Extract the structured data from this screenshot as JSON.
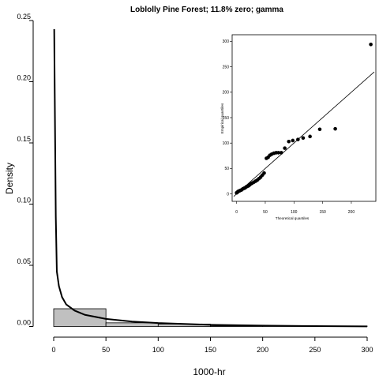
{
  "chart_data": [
    {
      "type": "histogram",
      "title": "Loblolly Pine Forest; 11.8% zero; gamma",
      "xlabel": "1000-hr",
      "ylabel": "Density",
      "xlim": [
        0,
        300
      ],
      "ylim": [
        0,
        0.25
      ],
      "x_ticks": [
        0,
        50,
        100,
        150,
        200,
        250,
        300
      ],
      "x_tick_labels": [
        "0",
        "50",
        "100",
        "150",
        "200",
        "250",
        "300"
      ],
      "y_ticks": [
        0.0,
        0.05,
        0.1,
        0.15,
        0.2,
        0.25
      ],
      "y_tick_labels": [
        "0.00",
        "0.05",
        "0.10",
        "0.15",
        "0.20",
        "0.25"
      ],
      "bins": [
        {
          "x0": 0,
          "x1": 50,
          "density": 0.0145
        },
        {
          "x0": 50,
          "x1": 100,
          "density": 0.003
        },
        {
          "x0": 100,
          "x1": 150,
          "density": 0.002
        },
        {
          "x0": 150,
          "x1": 200,
          "density": 0.0004
        },
        {
          "x0": 200,
          "x1": 250,
          "density": 0.0
        },
        {
          "x0": 250,
          "x1": 300,
          "density": 0.0002
        }
      ],
      "density_curve": {
        "distribution": "gamma",
        "x": [
          0.5,
          1,
          2,
          3,
          5,
          8,
          12,
          20,
          30,
          50,
          75,
          100,
          150,
          200,
          250,
          300
        ],
        "y": [
          0.243,
          0.19,
          0.09,
          0.045,
          0.033,
          0.024,
          0.018,
          0.013,
          0.0095,
          0.0062,
          0.004,
          0.0028,
          0.0014,
          0.0007,
          0.0003,
          0.0001
        ]
      },
      "grid": false,
      "colors": {
        "bar_fill": "#c0c0c0",
        "bar_stroke": "#000000",
        "curve": "#000000"
      }
    },
    {
      "type": "scatter",
      "subtype": "qq-plot",
      "xlabel": "Theoretical quantiles",
      "ylabel": "Empirical quantiles",
      "xlim": [
        -5,
        240
      ],
      "ylim": [
        -10,
        310
      ],
      "x_ticks": [
        0,
        50,
        100,
        150,
        200
      ],
      "x_tick_labels": [
        "0",
        "50",
        "100",
        "150",
        "200"
      ],
      "y_ticks": [
        0,
        50,
        100,
        150,
        200,
        250,
        300
      ],
      "y_tick_labels": [
        "0",
        "50",
        "100",
        "150",
        "200",
        "250",
        "300"
      ],
      "points": [
        [
          0,
          2
        ],
        [
          1,
          3
        ],
        [
          2,
          4
        ],
        [
          3,
          5
        ],
        [
          5,
          6
        ],
        [
          7,
          7
        ],
        [
          9,
          8
        ],
        [
          11,
          10
        ],
        [
          13,
          11
        ],
        [
          15,
          12
        ],
        [
          17,
          14
        ],
        [
          19,
          15
        ],
        [
          21,
          16
        ],
        [
          23,
          18
        ],
        [
          25,
          20
        ],
        [
          27,
          21
        ],
        [
          30,
          23
        ],
        [
          33,
          25
        ],
        [
          36,
          27
        ],
        [
          39,
          30
        ],
        [
          42,
          33
        ],
        [
          45,
          37
        ],
        [
          48,
          41
        ],
        [
          52,
          70
        ],
        [
          55,
          72
        ],
        [
          58,
          76
        ],
        [
          61,
          78
        ],
        [
          65,
          80
        ],
        [
          69,
          81
        ],
        [
          73,
          81
        ],
        [
          78,
          81
        ],
        [
          84,
          90
        ],
        [
          91,
          103
        ],
        [
          98,
          105
        ],
        [
          107,
          107
        ],
        [
          116,
          110
        ],
        [
          128,
          113
        ],
        [
          145,
          127
        ],
        [
          172,
          128
        ],
        [
          234,
          294
        ]
      ],
      "reference_line": {
        "x": [
          -5,
          240
        ],
        "y": [
          -5,
          240
        ]
      },
      "colors": {
        "points": "#000000",
        "line": "#000000"
      }
    }
  ]
}
